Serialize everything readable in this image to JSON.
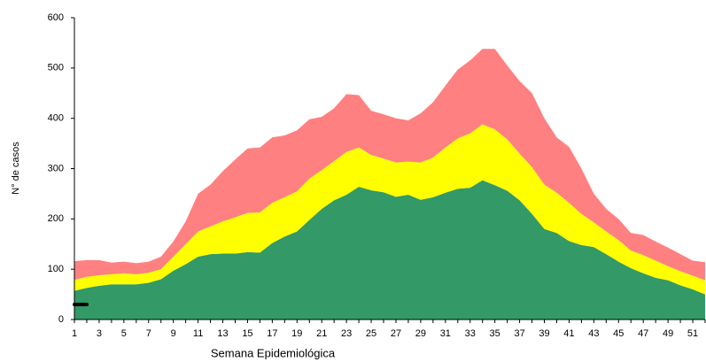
{
  "chart_data": {
    "type": "stacked_area",
    "xlabel": "Semana Epidemiológica",
    "ylabel": "N° de casos",
    "x": [
      1,
      2,
      3,
      4,
      5,
      6,
      7,
      8,
      9,
      10,
      11,
      12,
      13,
      14,
      15,
      16,
      17,
      18,
      19,
      20,
      21,
      22,
      23,
      24,
      25,
      26,
      27,
      28,
      29,
      30,
      31,
      32,
      33,
      34,
      35,
      36,
      37,
      38,
      39,
      40,
      41,
      42,
      43,
      44,
      45,
      46,
      47,
      48,
      49,
      50,
      51,
      52
    ],
    "xlim": [
      1,
      52
    ],
    "xticks": [
      1,
      3,
      5,
      7,
      9,
      11,
      13,
      15,
      17,
      19,
      21,
      23,
      25,
      27,
      29,
      31,
      33,
      35,
      37,
      39,
      41,
      43,
      45,
      47,
      49,
      51
    ],
    "ylim": [
      0,
      600
    ],
    "yticks": [
      0,
      100,
      200,
      300,
      400,
      500,
      600
    ],
    "series": [
      {
        "color": "#339966",
        "values": [
          57,
          63,
          67,
          70,
          70,
          70,
          73,
          80,
          97,
          110,
          125,
          130,
          131,
          131,
          134,
          133,
          152,
          165,
          175,
          198,
          220,
          237,
          248,
          264,
          257,
          253,
          244,
          248,
          238,
          243,
          252,
          260,
          262,
          277,
          267,
          256,
          237,
          210,
          180,
          172,
          156,
          148,
          144,
          130,
          115,
          102,
          92,
          83,
          78,
          68,
          60,
          50
        ]
      },
      {
        "color": "#ffff00",
        "values": [
          22,
          22,
          21,
          20,
          22,
          20,
          20,
          20,
          28,
          40,
          50,
          55,
          64,
          72,
          78,
          80,
          80,
          78,
          80,
          82,
          77,
          78,
          85,
          78,
          70,
          67,
          68,
          66,
          74,
          79,
          90,
          100,
          108,
          111,
          111,
          102,
          93,
          93,
          88,
          80,
          76,
          62,
          49,
          45,
          43,
          35,
          36,
          34,
          28,
          28,
          27,
          28
        ]
      },
      {
        "color": "#ff8080",
        "values": [
          37,
          33,
          30,
          23,
          23,
          22,
          22,
          25,
          30,
          45,
          75,
          83,
          100,
          115,
          128,
          129,
          130,
          123,
          121,
          118,
          106,
          105,
          115,
          104,
          88,
          88,
          88,
          82,
          98,
          110,
          123,
          137,
          145,
          150,
          160,
          147,
          144,
          147,
          132,
          110,
          111,
          90,
          57,
          45,
          42,
          35,
          40,
          38,
          37,
          34,
          30,
          36
        ]
      }
    ],
    "baseline": {
      "color": "#000000",
      "x": [
        1,
        2
      ],
      "values": [
        30,
        30
      ]
    }
  }
}
